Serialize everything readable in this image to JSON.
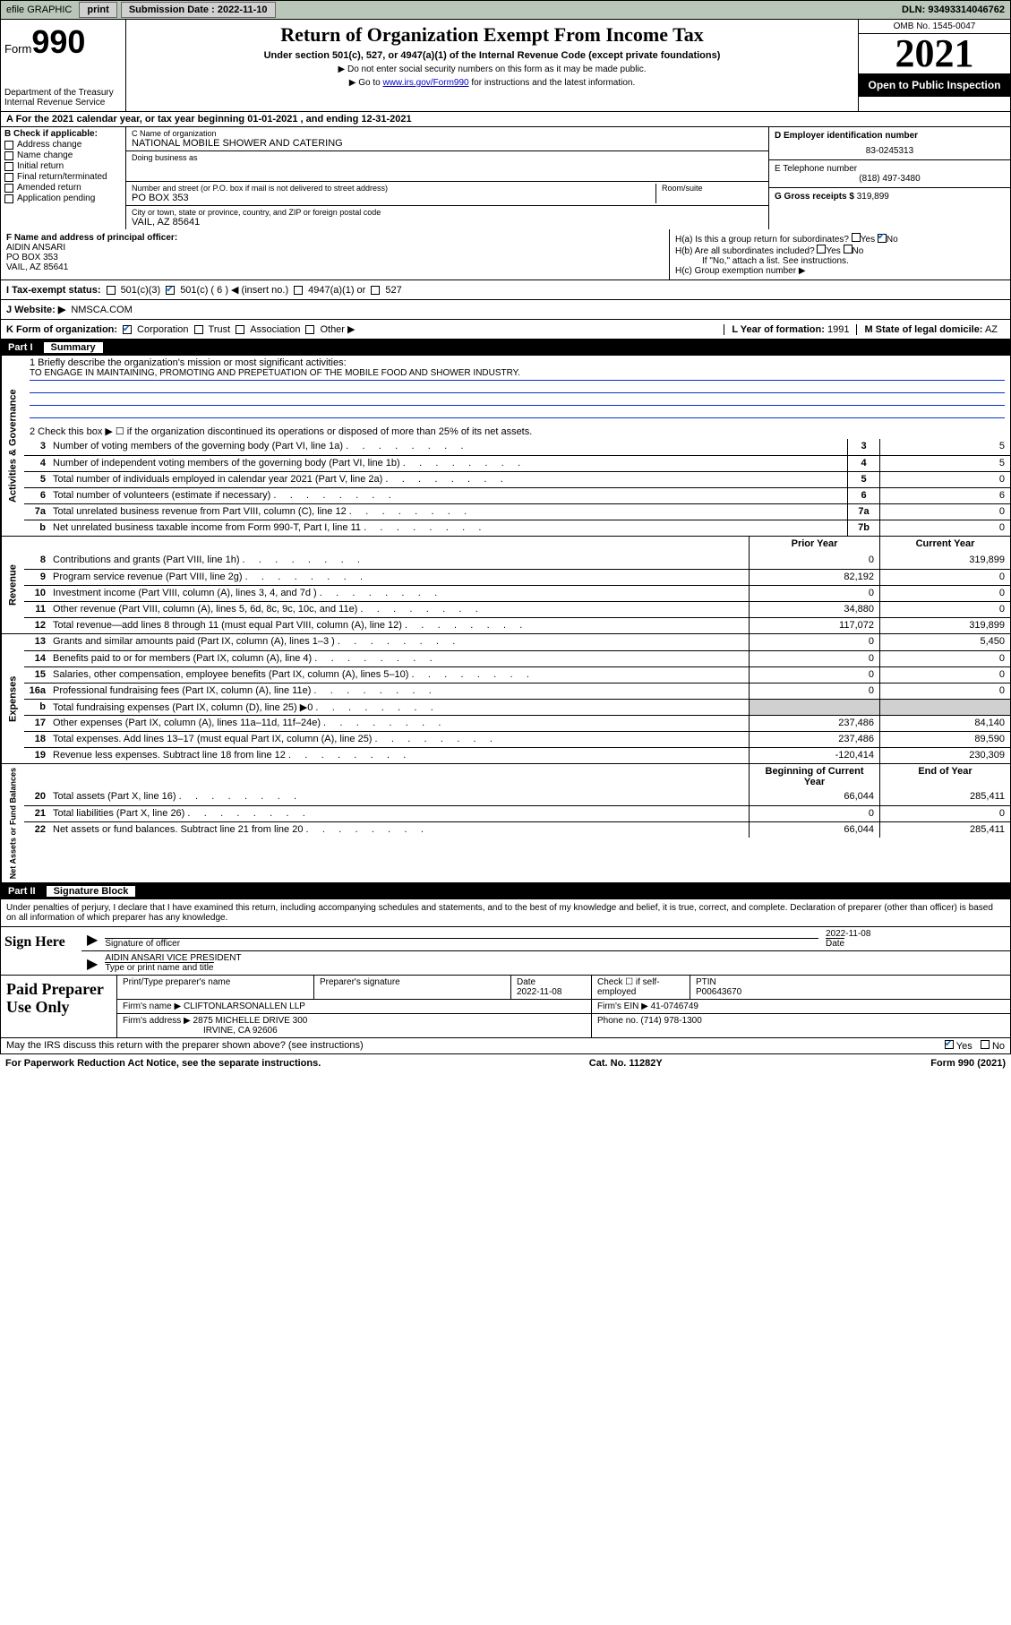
{
  "topbar": {
    "efile": "efile GRAPHIC",
    "print": "print",
    "sub_label": "Submission Date :",
    "sub_date": "2022-11-10",
    "dln": "DLN: 93493314046762"
  },
  "header": {
    "form_word": "Form",
    "form_num": "990",
    "dept": "Department of the Treasury",
    "irs": "Internal Revenue Service",
    "title": "Return of Organization Exempt From Income Tax",
    "subtitle": "Under section 501(c), 527, or 4947(a)(1) of the Internal Revenue Code (except private foundations)",
    "note1": "▶ Do not enter social security numbers on this form as it may be made public.",
    "note2_pre": "▶ Go to ",
    "note2_link": "www.irs.gov/Form990",
    "note2_post": " for instructions and the latest information.",
    "omb": "OMB No. 1545-0047",
    "year": "2021",
    "open": "Open to Public Inspection"
  },
  "row_a": "A For the 2021 calendar year, or tax year beginning 01-01-2021   , and ending 12-31-2021",
  "col_b": {
    "label": "B Check if applicable:",
    "items": [
      "Address change",
      "Name change",
      "Initial return",
      "Final return/terminated",
      "Amended return",
      "Application pending"
    ]
  },
  "col_c": {
    "name_lbl": "C Name of organization",
    "name": "NATIONAL MOBILE SHOWER AND CATERING",
    "dba_lbl": "Doing business as",
    "dba": "",
    "street_lbl": "Number and street (or P.O. box if mail is not delivered to street address)",
    "room_lbl": "Room/suite",
    "street": "PO BOX 353",
    "city_lbl": "City or town, state or province, country, and ZIP or foreign postal code",
    "city": "VAIL, AZ  85641"
  },
  "col_de": {
    "d_lbl": "D Employer identification number",
    "d_val": "83-0245313",
    "e_lbl": "E Telephone number",
    "e_val": "(818) 497-3480",
    "g_lbl": "G Gross receipts $",
    "g_val": "319,899"
  },
  "row_f": {
    "lbl": "F Name and address of principal officer:",
    "name": "AIDIN ANSARI",
    "street": "PO BOX 353",
    "city": "VAIL, AZ  85641"
  },
  "row_h": {
    "ha": "H(a)  Is this a group return for subordinates?",
    "ha_no": "No",
    "hb": "H(b)  Are all subordinates included?",
    "hb_note": "If \"No,\" attach a list. See instructions.",
    "hc": "H(c)  Group exemption number ▶"
  },
  "row_i": {
    "lbl": "I   Tax-exempt status:",
    "o1": "501(c)(3)",
    "o2": "501(c) ( 6 ) ◀ (insert no.)",
    "o3": "4947(a)(1) or",
    "o4": "527"
  },
  "row_j": {
    "lbl": "J   Website: ▶",
    "val": "NMSCA.COM"
  },
  "row_k": {
    "lbl": "K Form of organization:",
    "opts": [
      "Corporation",
      "Trust",
      "Association",
      "Other ▶"
    ],
    "l_lbl": "L Year of formation:",
    "l_val": "1991",
    "m_lbl": "M State of legal domicile:",
    "m_val": "AZ"
  },
  "part1": {
    "num": "Part I",
    "title": "Summary"
  },
  "mission": {
    "l1_lbl": "1  Briefly describe the organization's mission or most significant activities:",
    "l1_val": "TO ENGAGE IN MAINTAINING, PROMOTING AND PREPETUATION OF THE MOBILE FOOD AND SHOWER INDUSTRY.",
    "l2": "2   Check this box ▶ ☐  if the organization discontinued its operations or disposed of more than 25% of its net assets."
  },
  "gov_rows": [
    {
      "n": "3",
      "d": "Number of voting members of the governing body (Part VI, line 1a)",
      "c": "3",
      "v": "5"
    },
    {
      "n": "4",
      "d": "Number of independent voting members of the governing body (Part VI, line 1b)",
      "c": "4",
      "v": "5"
    },
    {
      "n": "5",
      "d": "Total number of individuals employed in calendar year 2021 (Part V, line 2a)",
      "c": "5",
      "v": "0"
    },
    {
      "n": "6",
      "d": "Total number of volunteers (estimate if necessary)",
      "c": "6",
      "v": "6"
    },
    {
      "n": "7a",
      "d": "Total unrelated business revenue from Part VIII, column (C), line 12",
      "c": "7a",
      "v": "0"
    },
    {
      "n": "b",
      "d": "Net unrelated business taxable income from Form 990-T, Part I, line 11",
      "c": "7b",
      "v": "0"
    }
  ],
  "rev_head": {
    "py": "Prior Year",
    "cy": "Current Year"
  },
  "rev_rows": [
    {
      "n": "8",
      "d": "Contributions and grants (Part VIII, line 1h)",
      "py": "0",
      "cy": "319,899"
    },
    {
      "n": "9",
      "d": "Program service revenue (Part VIII, line 2g)",
      "py": "82,192",
      "cy": "0"
    },
    {
      "n": "10",
      "d": "Investment income (Part VIII, column (A), lines 3, 4, and 7d )",
      "py": "0",
      "cy": "0"
    },
    {
      "n": "11",
      "d": "Other revenue (Part VIII, column (A), lines 5, 6d, 8c, 9c, 10c, and 11e)",
      "py": "34,880",
      "cy": "0"
    },
    {
      "n": "12",
      "d": "Total revenue—add lines 8 through 11 (must equal Part VIII, column (A), line 12)",
      "py": "117,072",
      "cy": "319,899"
    }
  ],
  "exp_rows": [
    {
      "n": "13",
      "d": "Grants and similar amounts paid (Part IX, column (A), lines 1–3 )",
      "py": "0",
      "cy": "5,450"
    },
    {
      "n": "14",
      "d": "Benefits paid to or for members (Part IX, column (A), line 4)",
      "py": "0",
      "cy": "0"
    },
    {
      "n": "15",
      "d": "Salaries, other compensation, employee benefits (Part IX, column (A), lines 5–10)",
      "py": "0",
      "cy": "0"
    },
    {
      "n": "16a",
      "d": "Professional fundraising fees (Part IX, column (A), line 11e)",
      "py": "0",
      "cy": "0"
    },
    {
      "n": "b",
      "d": "Total fundraising expenses (Part IX, column (D), line 25) ▶0",
      "py": "",
      "cy": "",
      "grey": true
    },
    {
      "n": "17",
      "d": "Other expenses (Part IX, column (A), lines 11a–11d, 11f–24e)",
      "py": "237,486",
      "cy": "84,140"
    },
    {
      "n": "18",
      "d": "Total expenses. Add lines 13–17 (must equal Part IX, column (A), line 25)",
      "py": "237,486",
      "cy": "89,590"
    },
    {
      "n": "19",
      "d": "Revenue less expenses. Subtract line 18 from line 12",
      "py": "-120,414",
      "cy": "230,309"
    }
  ],
  "net_head": {
    "py": "Beginning of Current Year",
    "cy": "End of Year"
  },
  "net_rows": [
    {
      "n": "20",
      "d": "Total assets (Part X, line 16)",
      "py": "66,044",
      "cy": "285,411"
    },
    {
      "n": "21",
      "d": "Total liabilities (Part X, line 26)",
      "py": "0",
      "cy": "0"
    },
    {
      "n": "22",
      "d": "Net assets or fund balances. Subtract line 21 from line 20",
      "py": "66,044",
      "cy": "285,411"
    }
  ],
  "vtabs": {
    "gov": "Activities & Governance",
    "rev": "Revenue",
    "exp": "Expenses",
    "net": "Net Assets or Fund Balances"
  },
  "part2": {
    "num": "Part II",
    "title": "Signature Block"
  },
  "sig": {
    "decl": "Under penalties of perjury, I declare that I have examined this return, including accompanying schedules and statements, and to the best of my knowledge and belief, it is true, correct, and complete. Declaration of preparer (other than officer) is based on all information of which preparer has any knowledge.",
    "sign_here": "Sign Here",
    "sig_officer": "Signature of officer",
    "date_lbl": "Date",
    "date_val": "2022-11-08",
    "name": "AIDIN ANSARI VICE PRESIDENT",
    "name_lbl": "Type or print name and title"
  },
  "prep": {
    "title": "Paid Preparer Use Only",
    "h1": "Print/Type preparer's name",
    "h2": "Preparer's signature",
    "h3": "Date",
    "h3v": "2022-11-08",
    "h4": "Check ☐ if self-employed",
    "h5": "PTIN",
    "h5v": "P00643670",
    "firm_lbl": "Firm's name    ▶",
    "firm": "CLIFTONLARSONALLEN LLP",
    "ein_lbl": "Firm's EIN ▶",
    "ein": "41-0746749",
    "addr_lbl": "Firm's address ▶",
    "addr1": "2875 MICHELLE DRIVE 300",
    "addr2": "IRVINE, CA  92606",
    "phone_lbl": "Phone no.",
    "phone": "(714) 978-1300"
  },
  "footer": {
    "discuss": "May the IRS discuss this return with the preparer shown above? (see instructions)",
    "yes": "Yes",
    "no": "No",
    "pra": "For Paperwork Reduction Act Notice, see the separate instructions.",
    "cat": "Cat. No. 11282Y",
    "form": "Form 990 (2021)"
  }
}
